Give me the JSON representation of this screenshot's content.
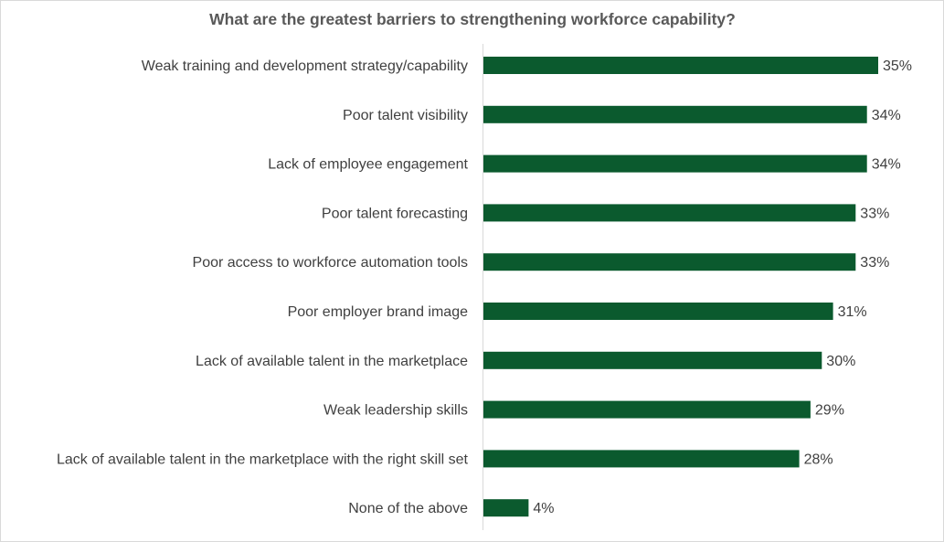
{
  "chart_data": {
    "type": "bar",
    "orientation": "horizontal",
    "title": "What are the greatest barriers to strengthening workforce capability?",
    "categories": [
      "Weak training and development strategy/capability",
      "Poor talent visibility",
      "Lack of employee engagement",
      "Poor talent forecasting",
      "Poor access to workforce automation tools",
      "Poor employer brand image",
      "Lack of available talent in the marketplace",
      "Weak leadership skills",
      "Lack of available talent in the marketplace with the right skill set",
      "None of the above"
    ],
    "values": [
      35,
      34,
      34,
      33,
      33,
      31,
      30,
      29,
      28,
      4
    ],
    "value_labels": [
      "35%",
      "34%",
      "34%",
      "33%",
      "33%",
      "31%",
      "30%",
      "29%",
      "28%",
      "4%"
    ],
    "unit": "%",
    "xlim": [
      0,
      35
    ],
    "grid": false,
    "legend": "none",
    "bar_color": "#0b5a2e"
  }
}
